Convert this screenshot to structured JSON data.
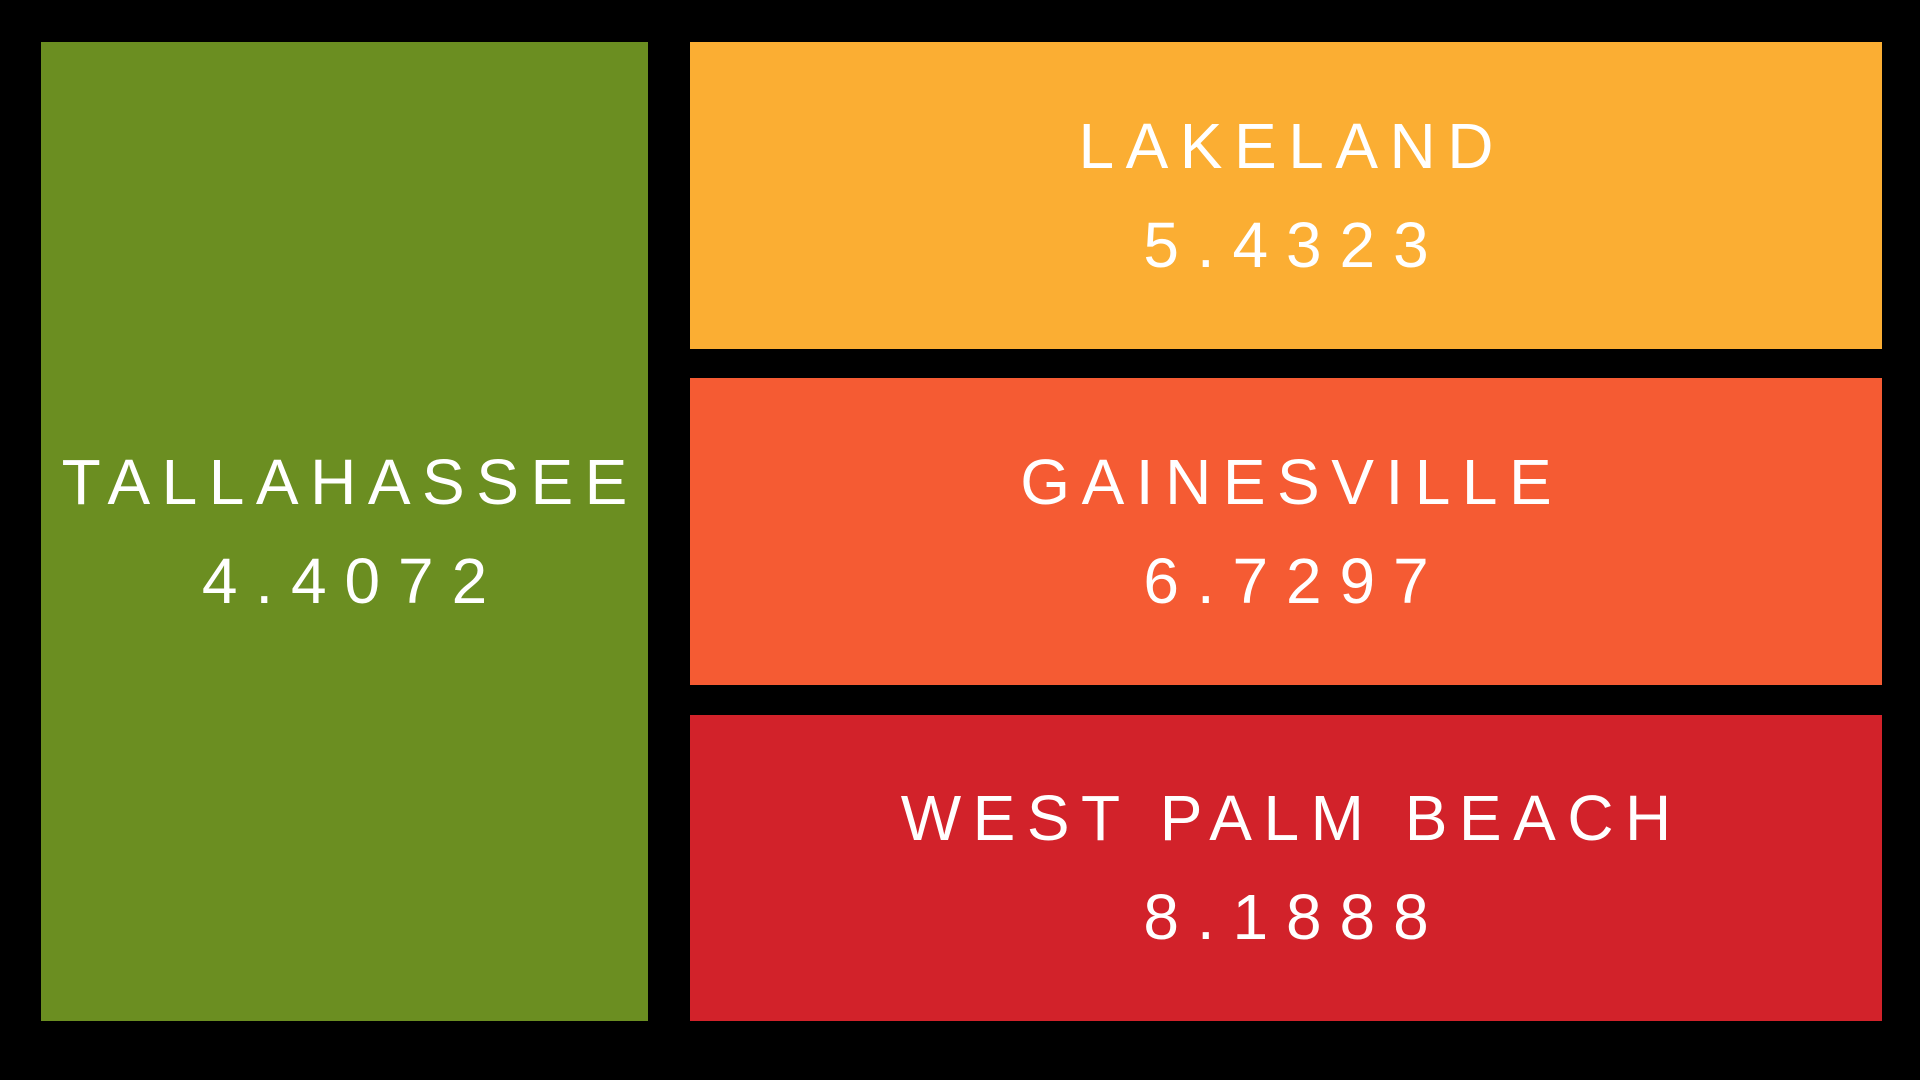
{
  "page": {
    "background": "#000000",
    "text_color": "#ffffff"
  },
  "chart_data": {
    "type": "treemap",
    "title": "",
    "legend": "none",
    "background": "#000000",
    "text_color": "#ffffff",
    "categories": [
      "TALLAHASSEE",
      "LAKELAND",
      "GAINESVILLE",
      "WEST PALM BEACH"
    ],
    "values": [
      4.4072,
      5.4323,
      6.7297,
      8.1888
    ],
    "items": [
      {
        "label": "TALLAHASSEE",
        "value": 4.4072,
        "value_text": "4.4072",
        "color": "#6b8e21"
      },
      {
        "label": "LAKELAND",
        "value": 5.4323,
        "value_text": "5.4323",
        "color": "#fbae33"
      },
      {
        "label": "GAINESVILLE",
        "value": 6.7297,
        "value_text": "6.7297",
        "color": "#f55b33"
      },
      {
        "label": "WEST PALM BEACH",
        "value": 8.1888,
        "value_text": "8.1888",
        "color": "#d2222a"
      }
    ]
  }
}
